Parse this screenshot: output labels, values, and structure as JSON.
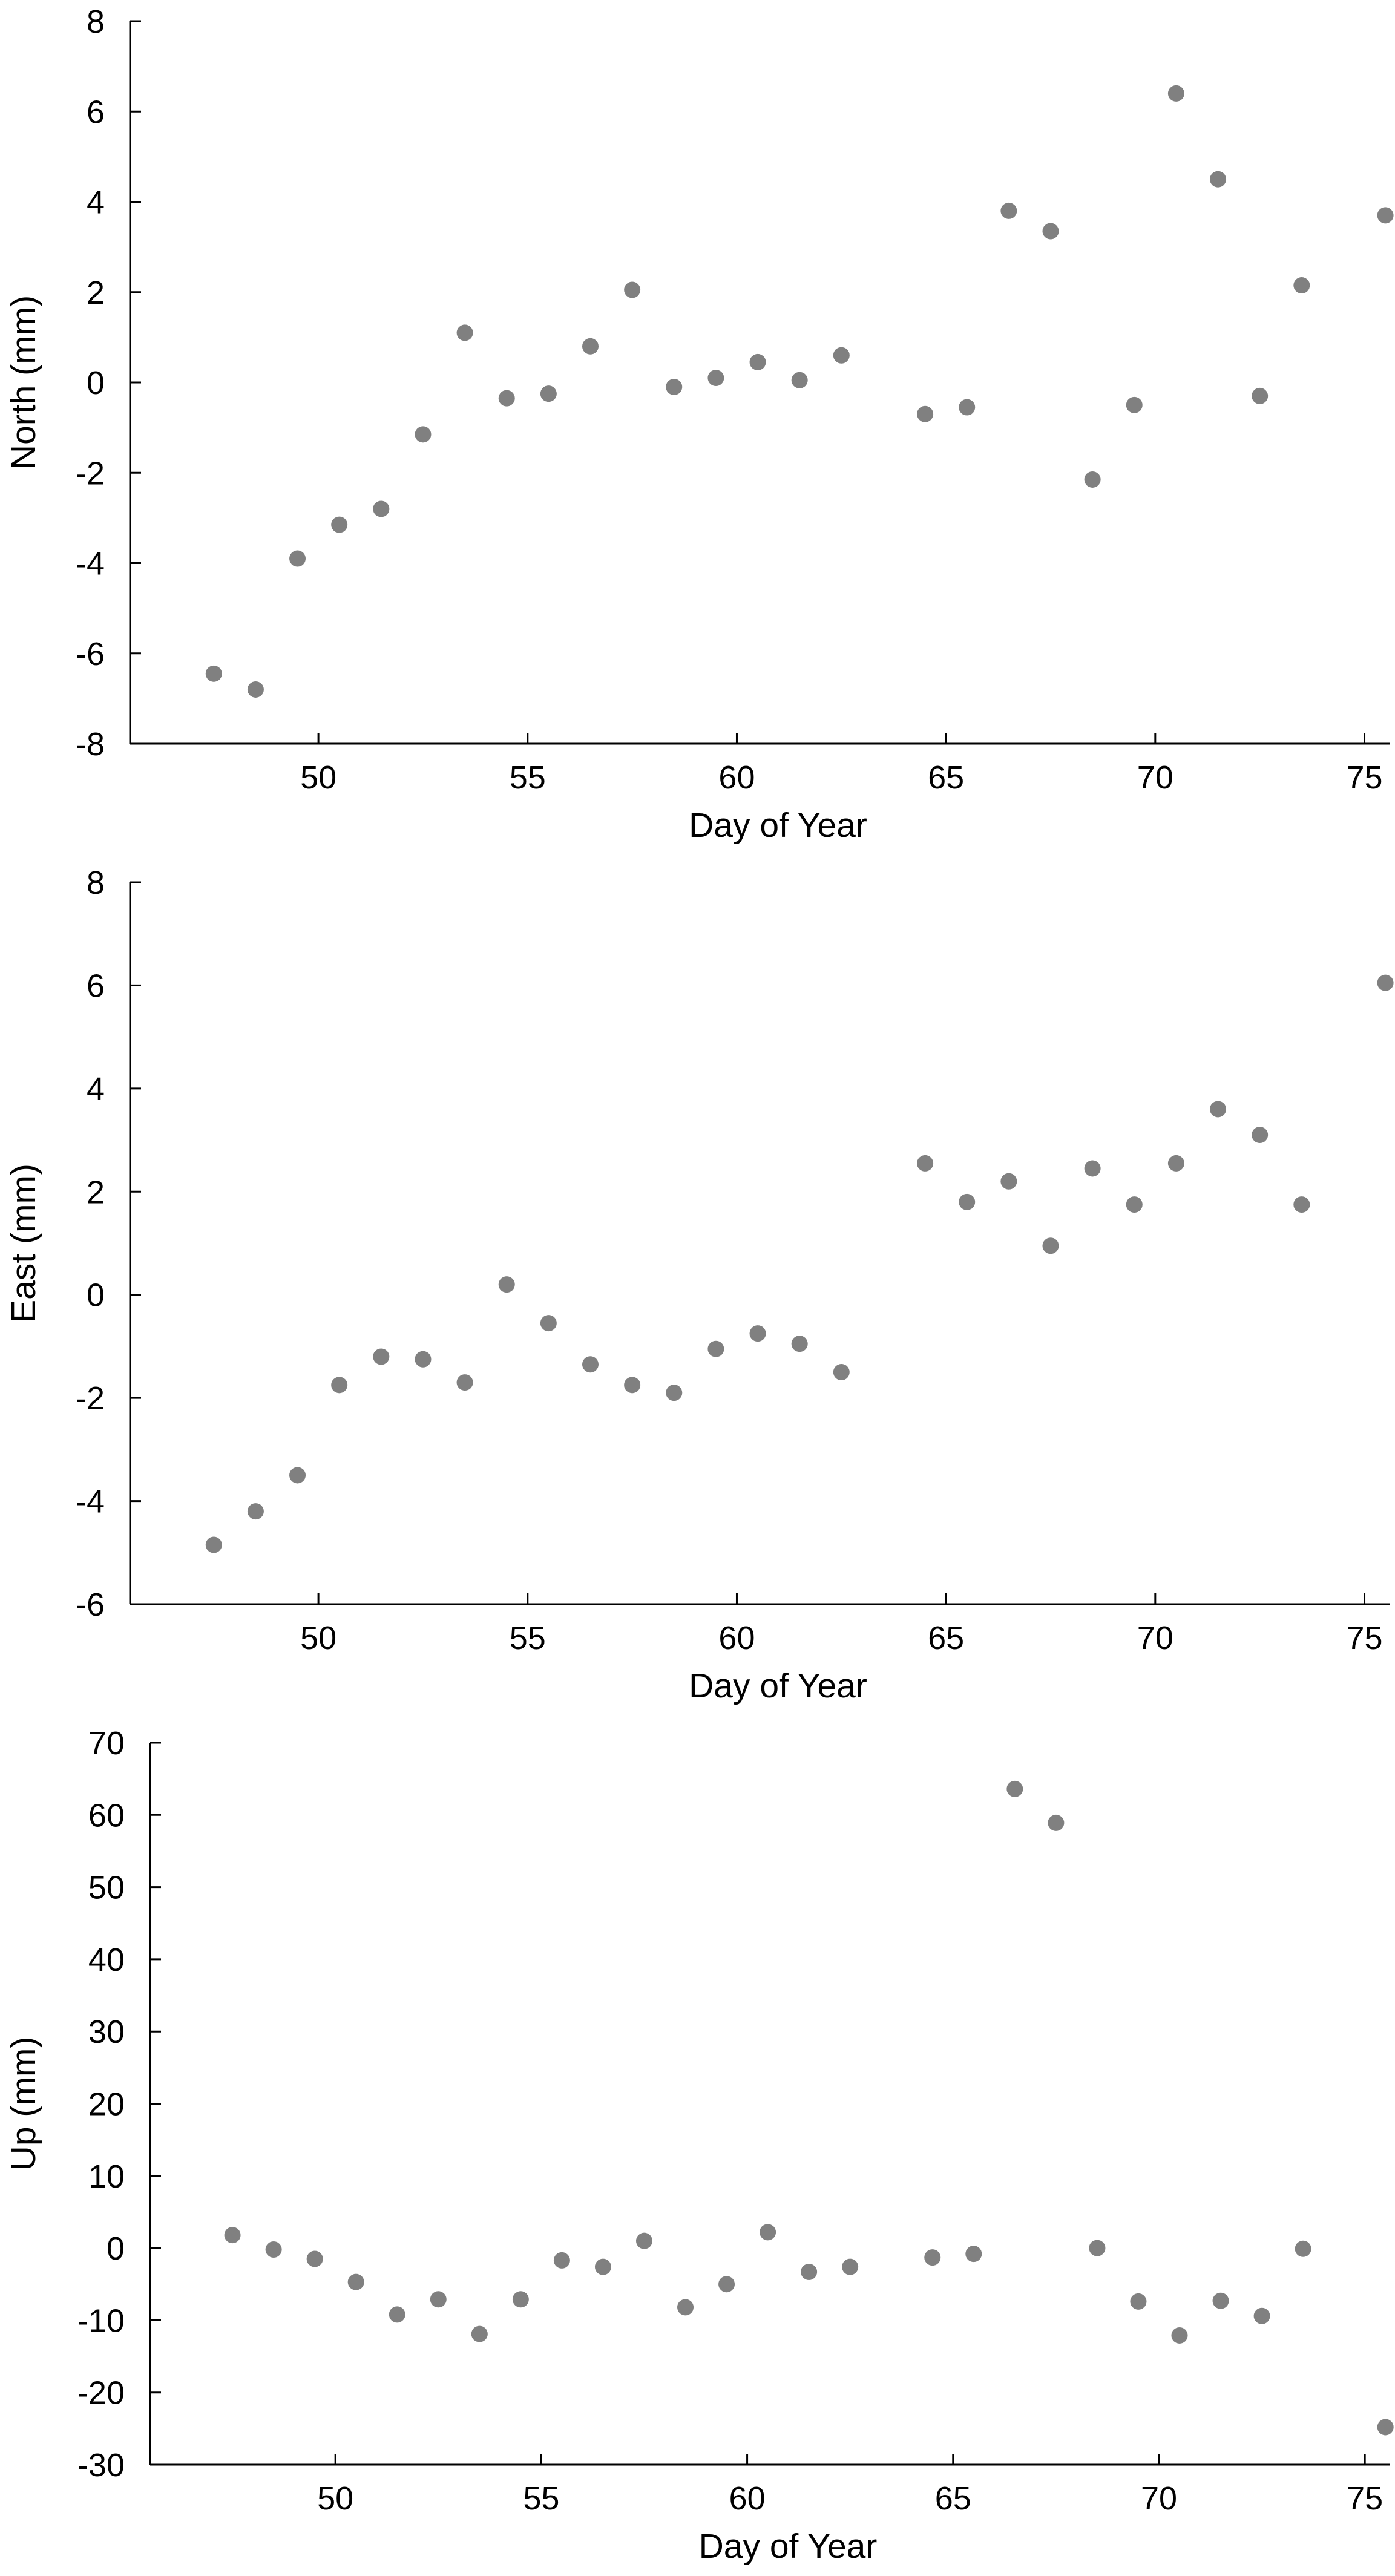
{
  "marker_color": "#808080",
  "axis_color": "#000000",
  "chart_data": [
    {
      "type": "scatter",
      "title": "",
      "xlabel": "Day of Year",
      "ylabel": "North (mm)",
      "xlim": [
        45.5,
        75.6
      ],
      "ylim": [
        -8,
        8
      ],
      "xticks": [
        50,
        55,
        60,
        65,
        70,
        75
      ],
      "yticks": [
        -8,
        -6,
        -4,
        -2,
        0,
        2,
        4,
        6,
        8
      ],
      "grid": false,
      "series": [
        {
          "x": [
            47.5,
            48.5,
            49.5,
            50.5,
            51.5,
            52.5,
            53.5,
            54.5,
            55.5,
            56.5,
            57.5,
            58.5,
            59.5,
            60.5,
            61.5,
            62.5,
            64.5,
            65.5,
            66.5,
            67.5,
            68.5,
            69.5,
            70.5,
            71.5,
            72.5,
            73.5,
            75.5
          ],
          "y": [
            -6.45,
            -6.8,
            -3.9,
            -3.15,
            -2.8,
            -1.15,
            1.1,
            -0.35,
            -0.25,
            0.8,
            2.05,
            -0.1,
            0.1,
            0.45,
            0.05,
            0.6,
            -0.7,
            -0.55,
            3.8,
            3.35,
            -2.15,
            -0.5,
            6.4,
            4.5,
            -0.3,
            2.15,
            3.7
          ]
        }
      ]
    },
    {
      "type": "scatter",
      "title": "",
      "xlabel": "Day of Year",
      "ylabel": "East (mm)",
      "xlim": [
        45.5,
        75.6
      ],
      "ylim": [
        -6,
        8
      ],
      "xticks": [
        50,
        55,
        60,
        65,
        70,
        75
      ],
      "yticks": [
        -6,
        -4,
        -2,
        0,
        2,
        4,
        6,
        8
      ],
      "grid": false,
      "series": [
        {
          "x": [
            47.5,
            48.5,
            49.5,
            50.5,
            51.5,
            52.5,
            53.5,
            54.5,
            55.5,
            56.5,
            57.5,
            58.5,
            59.5,
            60.5,
            61.5,
            62.5,
            64.5,
            65.5,
            66.5,
            67.5,
            68.5,
            69.5,
            70.5,
            71.5,
            72.5,
            73.5,
            75.5
          ],
          "y": [
            -4.85,
            -4.2,
            -3.5,
            -1.75,
            -1.2,
            -1.25,
            -1.7,
            0.2,
            -0.55,
            -1.35,
            -1.75,
            -1.9,
            -1.05,
            -0.75,
            -0.95,
            -1.5,
            2.55,
            1.8,
            2.2,
            0.95,
            2.45,
            1.75,
            2.55,
            3.6,
            3.1,
            1.75,
            6.05
          ]
        }
      ]
    },
    {
      "type": "scatter",
      "title": "",
      "xlabel": "Day of Year",
      "ylabel": "Up (mm)",
      "xlim": [
        45.5,
        75.6
      ],
      "ylim": [
        -30,
        70
      ],
      "xticks": [
        50,
        55,
        60,
        65,
        70,
        75
      ],
      "yticks": [
        -30,
        -20,
        -10,
        0,
        10,
        20,
        30,
        40,
        50,
        60,
        70
      ],
      "grid": false,
      "series": [
        {
          "x": [
            47.5,
            48.5,
            49.5,
            50.5,
            51.5,
            52.5,
            53.5,
            54.5,
            55.5,
            56.5,
            57.5,
            58.5,
            59.5,
            60.5,
            61.5,
            62.5,
            64.5,
            65.5,
            66.5,
            67.5,
            68.5,
            69.5,
            70.5,
            71.5,
            72.5,
            73.5,
            75.5
          ],
          "y": [
            1.8,
            -0.2,
            -1.5,
            -4.7,
            -9.2,
            -7.1,
            -11.9,
            -7.1,
            -1.7,
            -2.6,
            1.0,
            -8.2,
            -5.0,
            2.2,
            -3.3,
            -2.6,
            -1.3,
            -0.8,
            63.6,
            58.9,
            0.0,
            -7.4,
            -12.1,
            -7.3,
            -9.4,
            -0.1,
            -24.8
          ]
        }
      ]
    }
  ]
}
